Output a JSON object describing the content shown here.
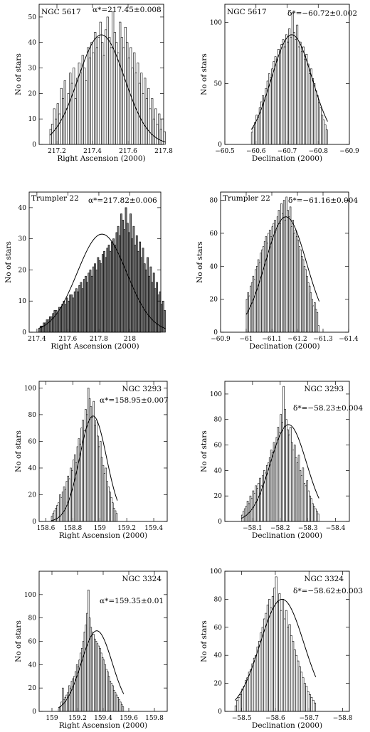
{
  "chart_data": [
    {
      "type": "bar",
      "cluster": "NGC 5617",
      "annotation": "α*=217.45±0.008",
      "xlabel": "Right Ascension (2000)",
      "ylabel": "No of stars",
      "xlim": [
        217.1,
        217.8
      ],
      "ylim": [
        0,
        55
      ],
      "xticks": [
        "217.2",
        "217.4",
        "217.6",
        "217.8"
      ],
      "xtick_values": [
        217.2,
        217.4,
        217.6,
        217.8
      ],
      "yticks": [
        "0",
        "10",
        "20",
        "30",
        "40",
        "50"
      ],
      "ytick_values": [
        0,
        10,
        20,
        30,
        40,
        50
      ],
      "fit": {
        "mean": 217.45,
        "sigma": 0.13,
        "peak": 43
      },
      "bins": {
        "start": 217.16,
        "width": 0.01
      },
      "values": [
        6,
        8,
        14,
        10,
        16,
        12,
        22,
        18,
        25,
        14,
        20,
        28,
        24,
        30,
        18,
        26,
        32,
        28,
        35,
        30,
        25,
        38,
        34,
        40,
        36,
        44,
        38,
        42,
        48,
        40,
        35,
        45,
        50,
        42,
        38,
        52,
        44,
        40,
        36,
        48,
        42,
        38,
        46,
        40,
        34,
        38,
        30,
        36,
        28,
        32,
        24,
        28,
        20,
        26,
        18,
        22,
        14,
        18,
        10,
        14,
        8,
        12,
        6,
        10,
        5
      ],
      "shaded": false
    },
    {
      "type": "bar",
      "cluster": "NGC 5617",
      "annotation": "δ*=−60.72±0.002",
      "xlabel": "Declination (2000)",
      "ylabel": "No of stars",
      "xlim": [
        -60.5,
        -60.9
      ],
      "ylim": [
        0,
        115
      ],
      "xticks": [
        "−60.5",
        "−60.6",
        "−60.7",
        "−60.8",
        "−60.9"
      ],
      "xtick_values": [
        -60.5,
        -60.6,
        -60.7,
        -60.8,
        -60.9
      ],
      "yticks": [
        "0",
        "50",
        "100"
      ],
      "ytick_values": [
        0,
        50,
        100
      ],
      "fit": {
        "mean": -60.715,
        "sigma": 0.065,
        "peak": 90
      },
      "bins": {
        "start": -60.585,
        "width": -0.005
      },
      "values": [
        10,
        14,
        18,
        24,
        22,
        30,
        35,
        40,
        38,
        46,
        52,
        58,
        55,
        62,
        68,
        72,
        70,
        78,
        75,
        82,
        86,
        80,
        90,
        84,
        95,
        88,
        108,
        92,
        86,
        98,
        80,
        84,
        76,
        80,
        70,
        74,
        66,
        58,
        62,
        54,
        50,
        44,
        40,
        34,
        30,
        24,
        20,
        16,
        12
      ],
      "shaded": false
    },
    {
      "type": "bar",
      "cluster": "Trumpler 22",
      "annotation": "α*=217.82±0.006",
      "xlabel": "Right Ascension (2000)",
      "ylabel": "No of stars",
      "xlim": [
        217.35,
        218.2
      ],
      "ylim": [
        0,
        45
      ],
      "xticks": [
        "217.4",
        "217.6",
        "217.8",
        "218"
      ],
      "xtick_values": [
        217.4,
        217.6,
        217.8,
        218.0
      ],
      "yticks": [
        "0",
        "10",
        "20",
        "30",
        "40"
      ],
      "ytick_values": [
        0,
        10,
        20,
        30,
        40
      ],
      "fit": {
        "mean": 217.82,
        "sigma": 0.16,
        "peak": 31.5
      },
      "bins": {
        "start": 217.41,
        "width": 0.01
      },
      "values": [
        1,
        2,
        2,
        3,
        3,
        4,
        4,
        5,
        5,
        6,
        7,
        7,
        6,
        8,
        8,
        9,
        10,
        9,
        11,
        10,
        12,
        12,
        11,
        13,
        14,
        13,
        15,
        16,
        14,
        17,
        18,
        16,
        19,
        20,
        18,
        21,
        22,
        20,
        24,
        23,
        22,
        25,
        26,
        24,
        27,
        28,
        26,
        29,
        30,
        28,
        32,
        34,
        31,
        38,
        36,
        33,
        40,
        35,
        32,
        38,
        30,
        34,
        28,
        31,
        26,
        29,
        24,
        27,
        22,
        20,
        24,
        18,
        21,
        16,
        19,
        14,
        16,
        12,
        13,
        9,
        10,
        7
      ],
      "shaded": true
    },
    {
      "type": "bar",
      "cluster": "Trumpler 22",
      "annotation": "δ*=−61.16±0.004",
      "xlabel": "Declination (2000)",
      "ylabel": "No of stars",
      "xlim": [
        -60.9,
        -61.4
      ],
      "ylim": [
        0,
        85
      ],
      "xticks": [
        "−60.9",
        "−61",
        "−61.1",
        "−61.2",
        "−61.3",
        "−61.4"
      ],
      "xtick_values": [
        -60.9,
        -61.0,
        -61.1,
        -61.2,
        -61.3,
        -61.4
      ],
      "yticks": [
        "0",
        "20",
        "40",
        "60",
        "80"
      ],
      "ytick_values": [
        0,
        20,
        40,
        60,
        80
      ],
      "fit": {
        "mean": -61.155,
        "sigma": 0.08,
        "peak": 70
      },
      "bins": {
        "start": -61.0,
        "width": -0.005
      },
      "values": [
        20,
        24,
        22,
        28,
        30,
        34,
        32,
        38,
        40,
        44,
        42,
        48,
        50,
        52,
        55,
        58,
        54,
        60,
        62,
        58,
        64,
        66,
        68,
        62,
        70,
        74,
        66,
        78,
        72,
        80,
        68,
        82,
        74,
        70,
        76,
        64,
        68,
        60,
        62,
        58,
        56,
        52,
        50,
        46,
        44,
        40,
        38,
        34,
        30,
        28,
        24,
        20,
        16,
        18,
        14,
        12,
        4
      ],
      "shaded": false
    },
    {
      "type": "bar",
      "cluster": "NGC 3293",
      "annotation": "α*=158.95±0.007",
      "xlabel": "Right Ascension (2000)",
      "ylabel": "No of stars",
      "xlim": [
        158.55,
        159.5
      ],
      "ylim": [
        0,
        105
      ],
      "xticks": [
        "158.6",
        "158.8",
        "159",
        "159.2",
        "159.4"
      ],
      "xtick_values": [
        158.6,
        158.8,
        159.0,
        159.2,
        159.4
      ],
      "yticks": [
        "0",
        "20",
        "40",
        "60",
        "80",
        "100"
      ],
      "ytick_values": [
        0,
        20,
        40,
        60,
        80,
        100
      ],
      "fit": {
        "mean": 158.95,
        "sigma": 0.1,
        "peak": 79
      },
      "bins": {
        "start": 158.64,
        "width": 0.01
      },
      "values": [
        4,
        6,
        8,
        10,
        12,
        14,
        20,
        18,
        22,
        26,
        24,
        30,
        34,
        32,
        40,
        38,
        46,
        50,
        44,
        56,
        62,
        58,
        70,
        76,
        68,
        84,
        80,
        100,
        92,
        86,
        78,
        90,
        72,
        76,
        64,
        56,
        60,
        48,
        42,
        36,
        40,
        30,
        26,
        22,
        18,
        14,
        10,
        8,
        6
      ],
      "shaded": false
    },
    {
      "type": "bar",
      "cluster": "NGC 3293",
      "annotation": "δ*=−58.23±0.004",
      "xlabel": "Declination (2000)",
      "ylabel": "No of stars",
      "xlim": [
        -58.0,
        -58.45
      ],
      "ylim": [
        0,
        110
      ],
      "xticks": [
        "−58.1",
        "−58.2",
        "−58.3",
        "−58.4"
      ],
      "xtick_values": [
        -58.1,
        -58.2,
        -58.3,
        -58.4
      ],
      "yticks": [
        "0",
        "20",
        "40",
        "60",
        "80",
        "100"
      ],
      "ytick_values": [
        0,
        20,
        40,
        60,
        80,
        100
      ],
      "fit": {
        "mean": -58.23,
        "sigma": 0.065,
        "peak": 76
      },
      "bins": {
        "start": -58.06,
        "width": -0.005
      },
      "values": [
        5,
        8,
        10,
        12,
        16,
        14,
        20,
        18,
        24,
        22,
        28,
        26,
        30,
        34,
        28,
        36,
        40,
        38,
        44,
        46,
        50,
        56,
        54,
        62,
        60,
        66,
        74,
        70,
        84,
        78,
        106,
        88,
        80,
        72,
        68,
        74,
        62,
        56,
        60,
        50,
        46,
        52,
        40,
        36,
        42,
        30,
        28,
        32,
        24,
        20,
        18,
        14,
        12,
        10,
        8,
        6
      ],
      "shaded": false
    },
    {
      "type": "bar",
      "cluster": "NGC 3324",
      "annotation": "α*=159.35±0.01",
      "xlabel": "Right Ascension (2000)",
      "ylabel": "No of stars",
      "xlim": [
        158.9,
        159.9
      ],
      "ylim": [
        0,
        120
      ],
      "xticks": [
        "159",
        "159.2",
        "159.4",
        "159.6",
        "159.8"
      ],
      "xtick_values": [
        159.0,
        159.2,
        159.4,
        159.6,
        159.8
      ],
      "yticks": [
        "0",
        "20",
        "40",
        "60",
        "80",
        "100"
      ],
      "ytick_values": [
        0,
        20,
        40,
        60,
        80,
        100
      ],
      "fit": {
        "mean": 159.35,
        "sigma": 0.12,
        "peak": 69
      },
      "bins": {
        "start": 159.05,
        "width": 0.01
      },
      "values": [
        2,
        4,
        8,
        20,
        10,
        12,
        14,
        16,
        22,
        20,
        26,
        28,
        30,
        34,
        40,
        38,
        44,
        50,
        54,
        60,
        68,
        74,
        84,
        104,
        80,
        72,
        68,
        66,
        62,
        60,
        58,
        56,
        54,
        50,
        46,
        44,
        40,
        36,
        34,
        30,
        26,
        24,
        22,
        18,
        16,
        14,
        12,
        10,
        8,
        6,
        4
      ],
      "shaded": false
    },
    {
      "type": "bar",
      "cluster": "NGC 3324",
      "annotation": "δ*=−58.62±0.003",
      "xlabel": "Declination (2000)",
      "ylabel": "No of stars",
      "xlim": [
        -58.45,
        -58.82
      ],
      "ylim": [
        0,
        100
      ],
      "xticks": [
        "−58.5",
        "−58.6",
        "−58.7",
        "−58.8"
      ],
      "xtick_values": [
        -58.5,
        -58.6,
        -58.7,
        -58.8
      ],
      "yticks": [
        "0",
        "20",
        "40",
        "60",
        "80",
        "100"
      ],
      "ytick_values": [
        0,
        20,
        40,
        60,
        80,
        100
      ],
      "fit": {
        "mean": -58.62,
        "sigma": 0.065,
        "peak": 80
      },
      "bins": {
        "start": -58.48,
        "width": -0.005
      },
      "values": [
        4,
        8,
        10,
        12,
        16,
        18,
        22,
        24,
        28,
        30,
        34,
        38,
        40,
        46,
        50,
        56,
        60,
        66,
        70,
        76,
        80,
        74,
        82,
        88,
        96,
        78,
        84,
        72,
        80,
        66,
        72,
        60,
        62,
        54,
        50,
        44,
        40,
        36,
        32,
        28,
        24,
        20,
        18,
        14,
        12,
        10,
        8,
        6
      ],
      "shaded": false
    }
  ]
}
